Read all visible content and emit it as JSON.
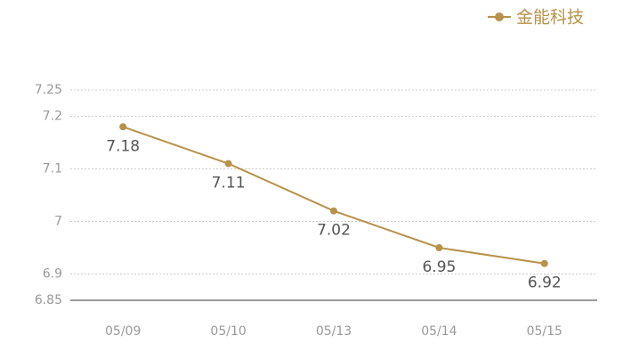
{
  "chart_data": {
    "type": "line",
    "categories": [
      "05/09",
      "05/10",
      "05/13",
      "05/14",
      "05/15"
    ],
    "series": [
      {
        "name": "金能科技",
        "color": "#b8924a",
        "values": [
          7.18,
          7.11,
          7.02,
          6.95,
          6.92
        ]
      }
    ],
    "ylim": [
      6.85,
      7.25
    ],
    "yticks": [
      6.85,
      6.9,
      7,
      7.1,
      7.2,
      7.25
    ],
    "grid": true,
    "legend": "top-right"
  }
}
